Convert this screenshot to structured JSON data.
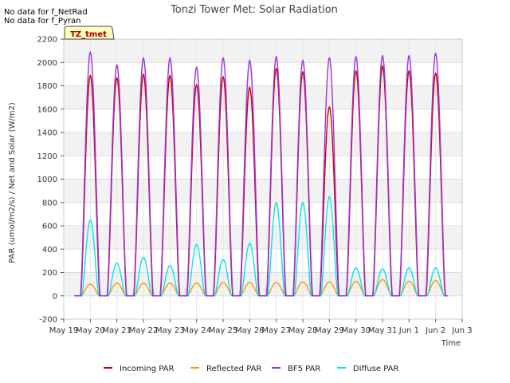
{
  "chart_data": {
    "type": "line",
    "title": "Tonzi Tower Met: Solar Radiation",
    "xlabel": "Time",
    "ylabel": "PAR (umol/m2/s) / Net and Solar (W/m2)",
    "ylim": [
      -200,
      2200
    ],
    "yticks": [
      -200,
      0,
      200,
      400,
      600,
      800,
      1000,
      1200,
      1400,
      1600,
      1800,
      2000,
      2200
    ],
    "xlim": [
      0,
      15
    ],
    "xticks": [
      {
        "pos": 0,
        "label": "May 19"
      },
      {
        "pos": 1,
        "label": "May 20"
      },
      {
        "pos": 2,
        "label": "May 21"
      },
      {
        "pos": 3,
        "label": "May 22"
      },
      {
        "pos": 4,
        "label": "May 23"
      },
      {
        "pos": 5,
        "label": "May 24"
      },
      {
        "pos": 6,
        "label": "May 25"
      },
      {
        "pos": 7,
        "label": "May 26"
      },
      {
        "pos": 8,
        "label": "May 27"
      },
      {
        "pos": 9,
        "label": "May 28"
      },
      {
        "pos": 10,
        "label": "May 29"
      },
      {
        "pos": 11,
        "label": "May 30"
      },
      {
        "pos": 12,
        "label": "May 31"
      },
      {
        "pos": 13,
        "label": "Jun 1"
      },
      {
        "pos": 14,
        "label": "Jun 2"
      },
      {
        "pos": 15,
        "label": "Jun 3"
      }
    ],
    "day_positions": [
      1,
      2,
      3,
      4,
      5,
      6,
      7,
      8,
      9,
      10,
      11,
      12,
      13,
      14
    ],
    "series": [
      {
        "name": "Incoming PAR",
        "color": "#cc0000",
        "daily_peaks": [
          1890,
          1870,
          1900,
          1890,
          1810,
          1880,
          1790,
          1950,
          1920,
          1620,
          1930,
          1970,
          1930,
          1910
        ]
      },
      {
        "name": "Reflected PAR",
        "color": "#ff9900",
        "daily_peaks": [
          100,
          110,
          110,
          110,
          110,
          115,
          115,
          115,
          120,
          120,
          125,
          140,
          125,
          130
        ]
      },
      {
        "name": "BF5 PAR",
        "color": "#9933dd",
        "daily_peaks": [
          2090,
          1980,
          2040,
          2040,
          1960,
          2040,
          2020,
          2050,
          2020,
          2040,
          2050,
          2060,
          2060,
          2080
        ]
      },
      {
        "name": "Diffuse PAR",
        "color": "#00e5ee",
        "daily_peaks": [
          650,
          280,
          330,
          260,
          440,
          310,
          450,
          800,
          800,
          850,
          240,
          230,
          240,
          240
        ]
      }
    ],
    "notes": [
      "No data for f_NetRad",
      "No data for f_Pyran"
    ],
    "badge": "TZ_tmet",
    "grid": true,
    "legend_position": "bottom"
  }
}
